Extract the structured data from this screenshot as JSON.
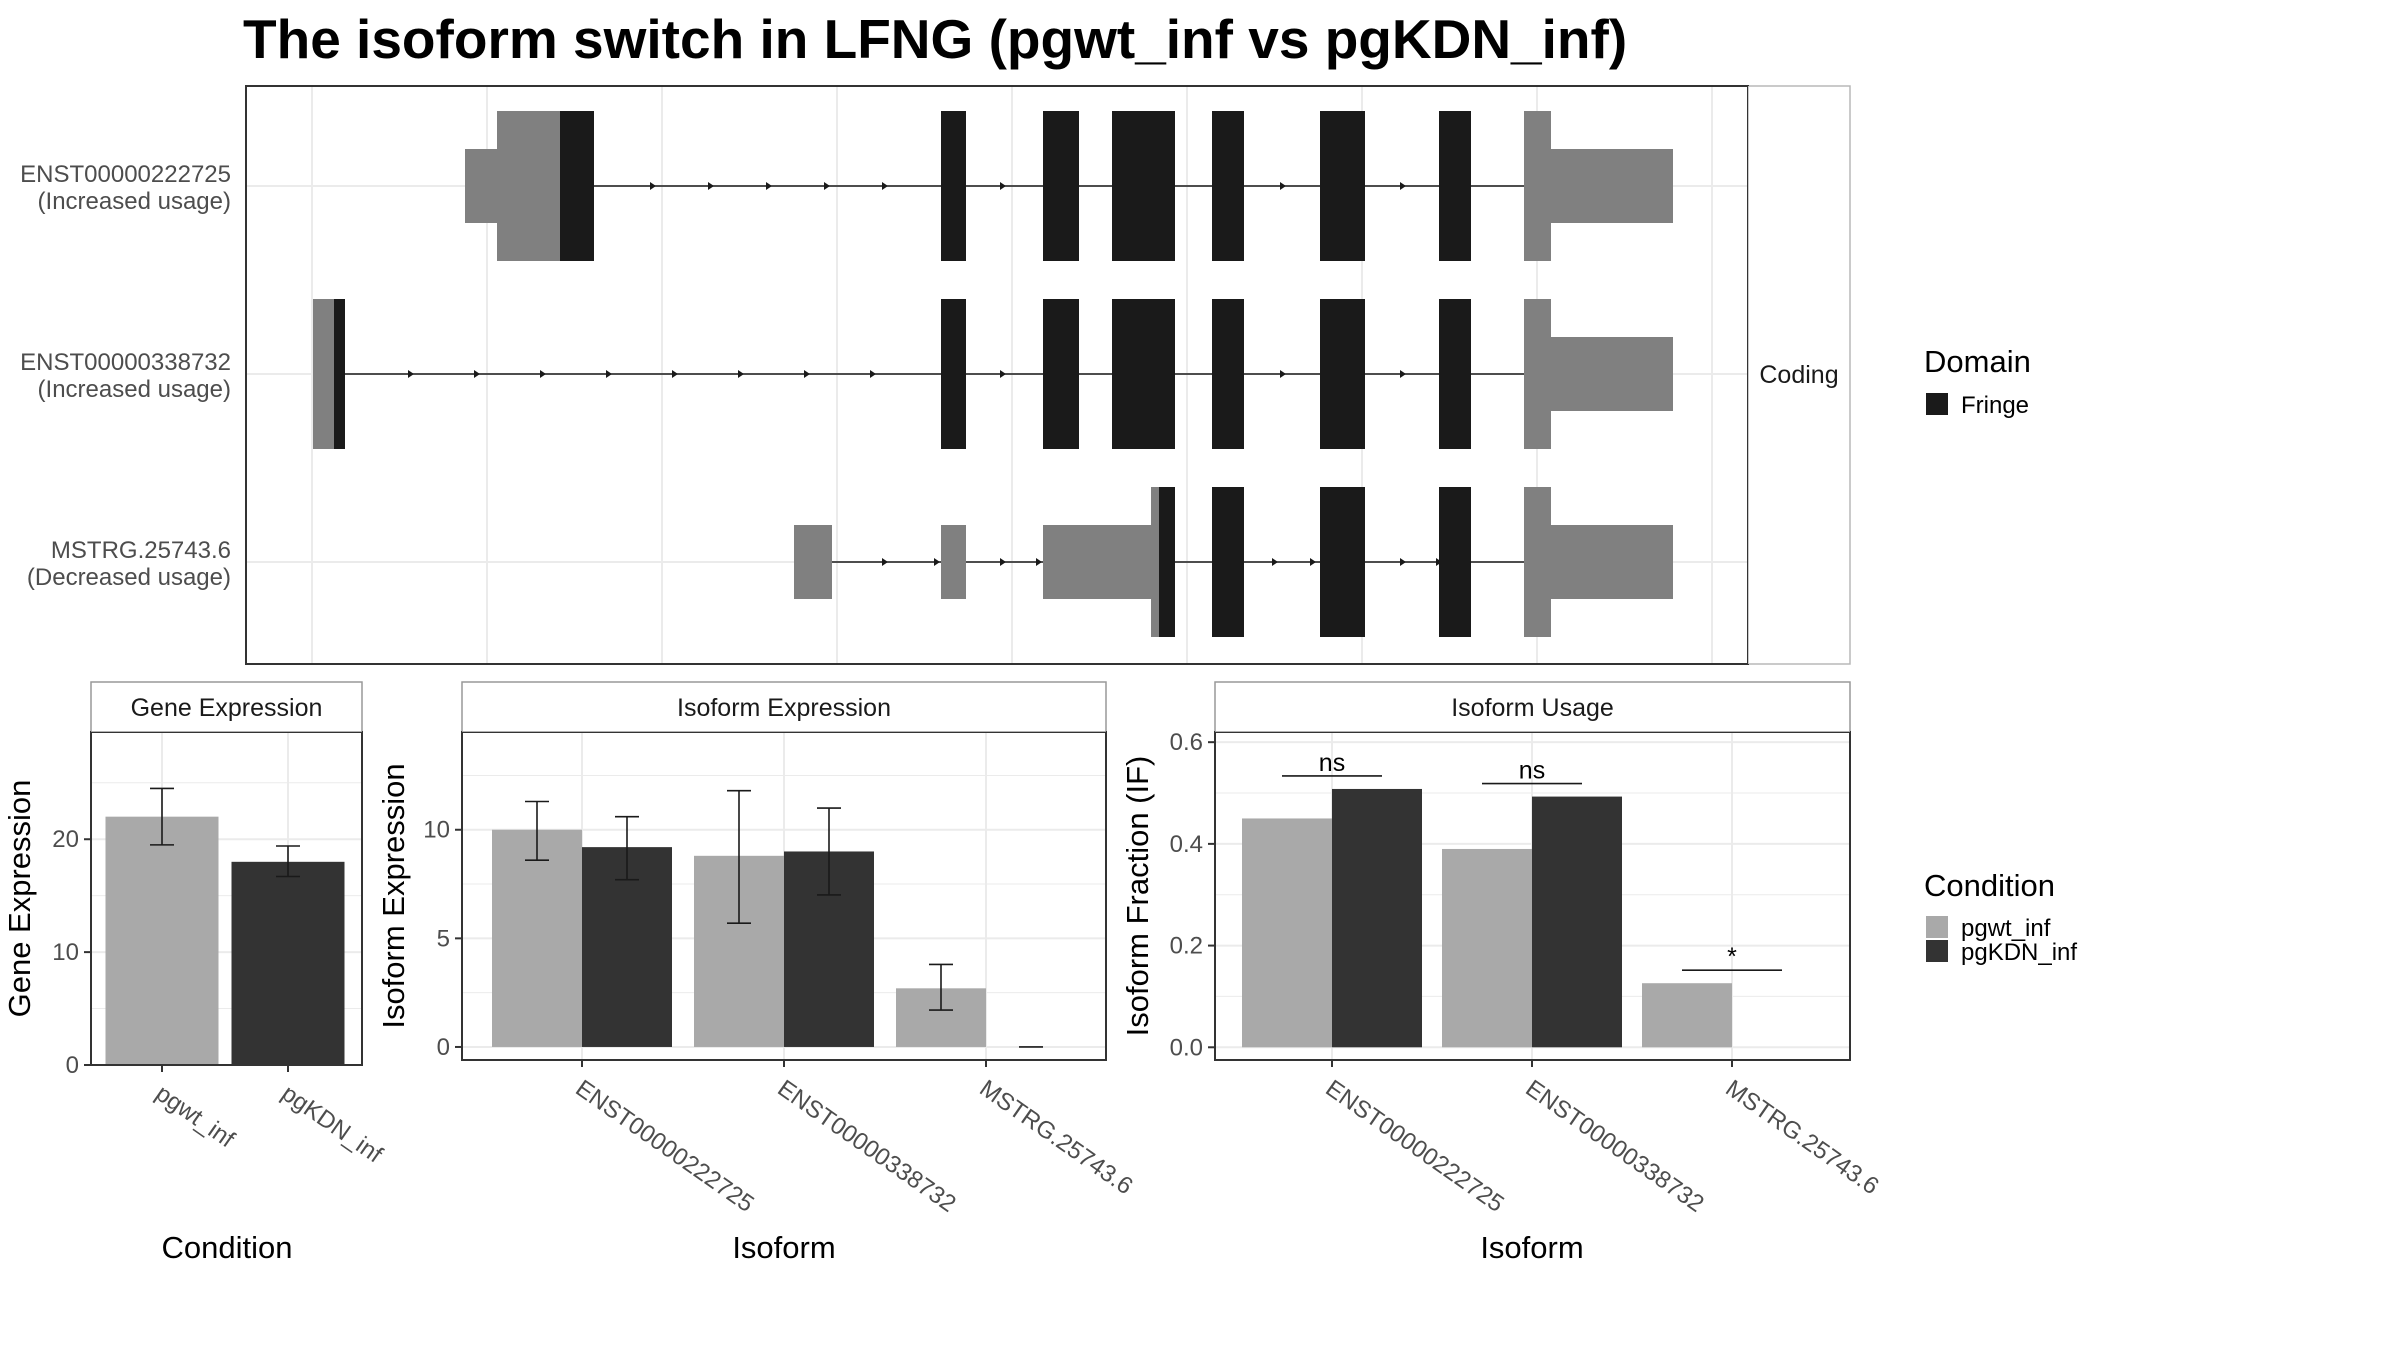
{
  "title": "The isoform switch in LFNG (pgwt_inf vs pgKDN_inf)",
  "colors": {
    "fringe": "#1a1a1a",
    "noncoding_exon": "#808080",
    "pgwt_inf": "#a9a9a9",
    "pgKDN_inf": "#333333",
    "grid": "#ebebeb",
    "panel_border": "#333333"
  },
  "structure_panel": {
    "facet_label": "Coding",
    "transcripts": [
      {
        "id": "ENST00000222725",
        "usage": "(Increased usage)"
      },
      {
        "id": "ENST00000338732",
        "usage": "(Increased usage)"
      },
      {
        "id": "MSTRG.25743.6",
        "usage": "(Decreased usage)"
      }
    ]
  },
  "legend_domain": {
    "title": "Domain",
    "items": [
      {
        "label": "Fringe",
        "color": "#1a1a1a"
      }
    ]
  },
  "legend_condition": {
    "title": "Condition",
    "items": [
      {
        "label": "pgwt_inf",
        "color": "#a9a9a9"
      },
      {
        "label": "pgKDN_inf",
        "color": "#333333"
      }
    ]
  },
  "chart_data": [
    {
      "type": "bar",
      "title": "Gene Expression",
      "xlabel": "Condition",
      "ylabel": "Gene Expression",
      "categories": [
        "pgwt_inf",
        "pgKDN_inf"
      ],
      "values": [
        22.0,
        18.0
      ],
      "errors": [
        [
          19.5,
          24.5
        ],
        [
          16.7,
          19.4
        ]
      ],
      "ylim": [
        0,
        29.5
      ],
      "yticks": [
        0,
        10,
        20
      ],
      "grid": true
    },
    {
      "type": "bar",
      "title": "Isoform Expression",
      "xlabel": "Isoform",
      "ylabel": "Isoform Expression",
      "categories": [
        "ENST00000222725",
        "ENST00000338732",
        "MSTRG.25743.6"
      ],
      "series": [
        {
          "name": "pgwt_inf",
          "values": [
            10.0,
            8.8,
            2.7
          ],
          "errors": [
            [
              8.6,
              11.3
            ],
            [
              5.7,
              11.8
            ],
            [
              1.7,
              3.8
            ]
          ]
        },
        {
          "name": "pgKDN_inf",
          "values": [
            9.2,
            9.0,
            0.0
          ],
          "errors": [
            [
              7.7,
              10.6
            ],
            [
              7.0,
              11.0
            ],
            [
              0.0,
              0.0
            ]
          ]
        }
      ],
      "ylim": [
        -0.6,
        14.5
      ],
      "yticks": [
        0,
        5,
        10
      ],
      "grid": true
    },
    {
      "type": "bar",
      "title": "Isoform Usage",
      "xlabel": "Isoform",
      "ylabel": "Isoform Fraction (IF)",
      "categories": [
        "ENST00000222725",
        "ENST00000338732",
        "MSTRG.25743.6"
      ],
      "series": [
        {
          "name": "pgwt_inf",
          "values": [
            0.45,
            0.39,
            0.126
          ]
        },
        {
          "name": "pgKDN_inf",
          "values": [
            0.508,
            0.493,
            0.0
          ]
        }
      ],
      "significance": [
        "ns",
        "ns",
        "*"
      ],
      "ylim": [
        -0.025,
        0.62
      ],
      "yticks": [
        0.0,
        0.2,
        0.4,
        0.6
      ],
      "grid": true
    }
  ]
}
